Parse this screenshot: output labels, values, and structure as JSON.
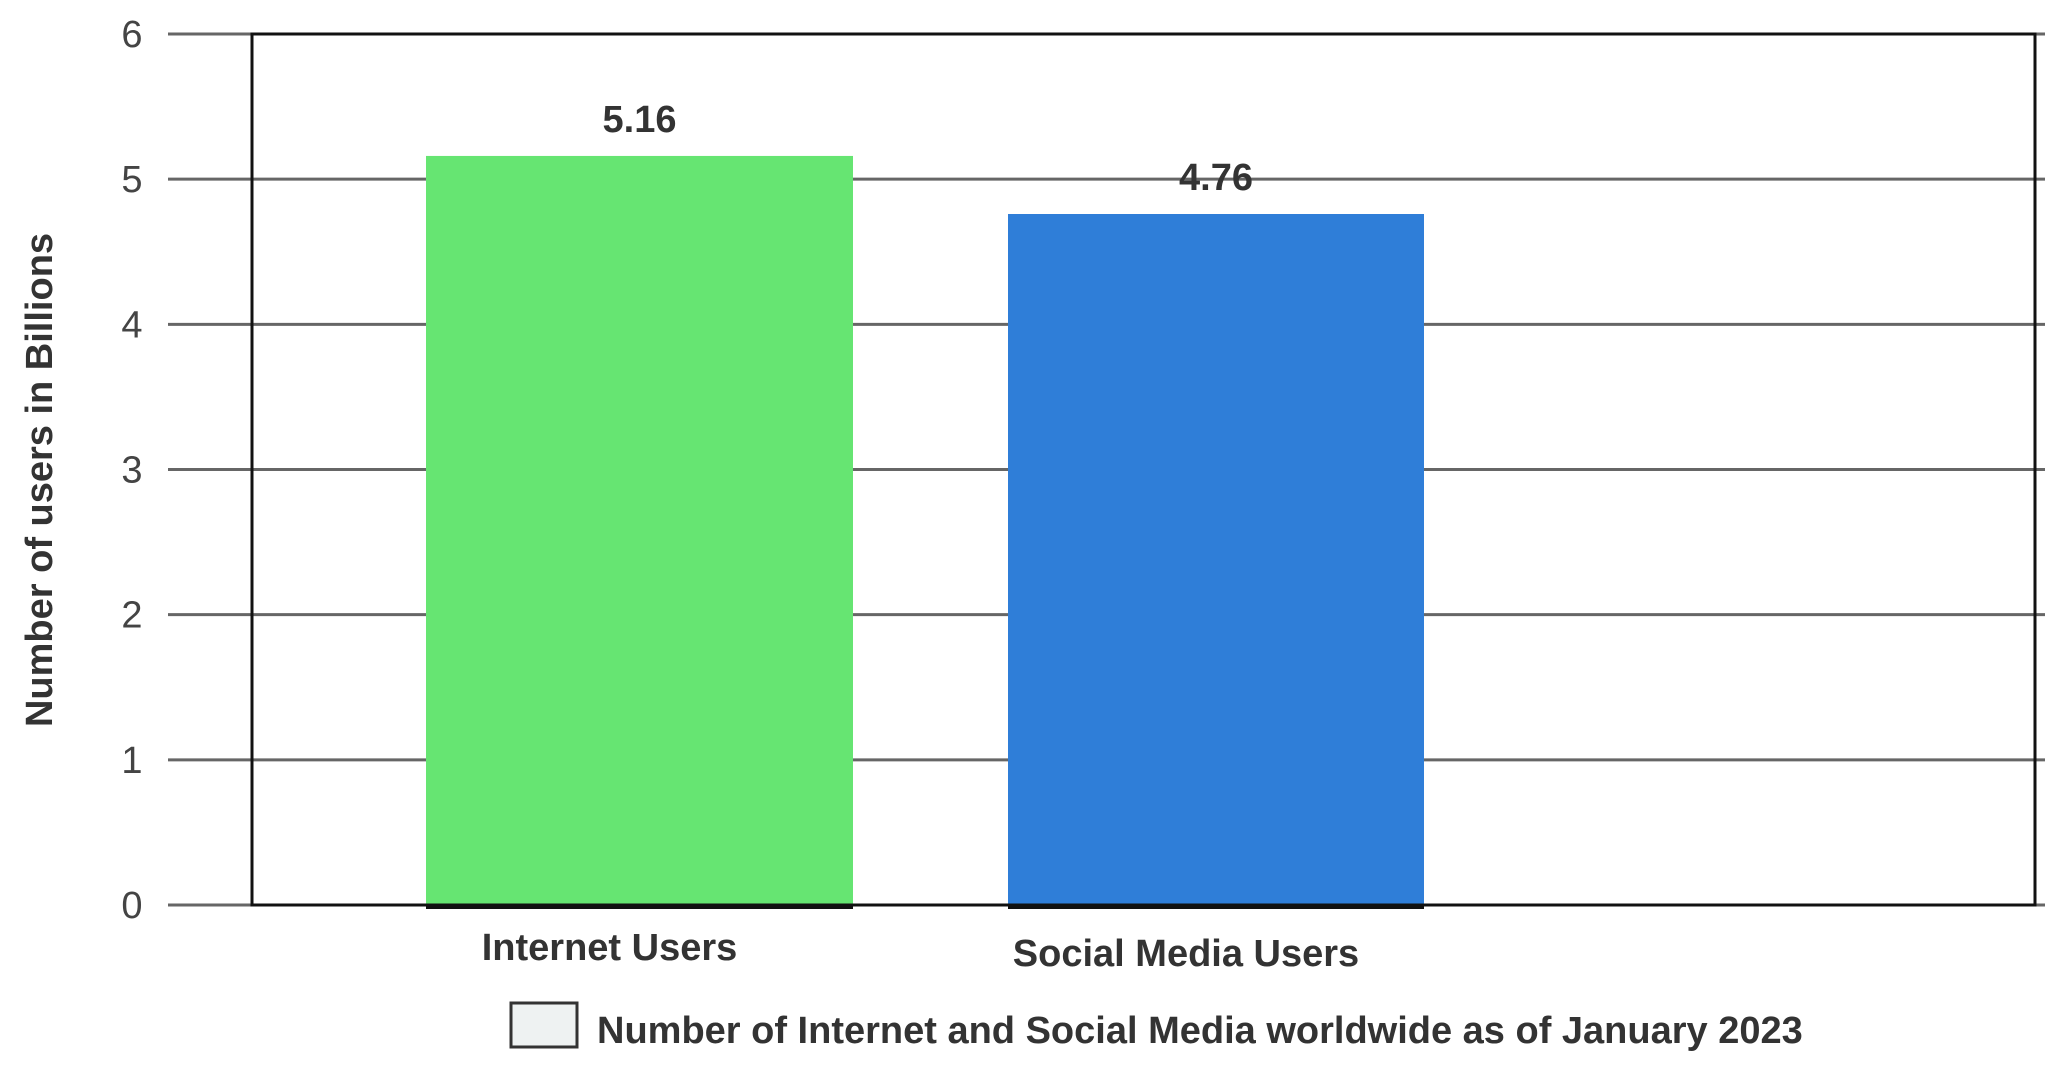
{
  "chart_data": {
    "type": "bar",
    "title": "",
    "xlabel": "",
    "ylabel": "Number of users in Billions",
    "categories": [
      "Internet Users",
      "Social Media Users"
    ],
    "series": [
      {
        "name": "Number of Internet and Social Media worldwide as of January 2023",
        "values": [
          5.16,
          4.76
        ],
        "data_labels": [
          "5.16",
          "4.76"
        ],
        "colors": [
          "#66e572",
          "#2f7ed8"
        ]
      }
    ],
    "ylim": [
      0,
      6
    ],
    "yticks": [
      "0",
      "1",
      "2",
      "3",
      "4",
      "5",
      "6"
    ],
    "grid": true,
    "legend_placement": "bottom",
    "legend_swatch_color": "#eef2f2"
  }
}
